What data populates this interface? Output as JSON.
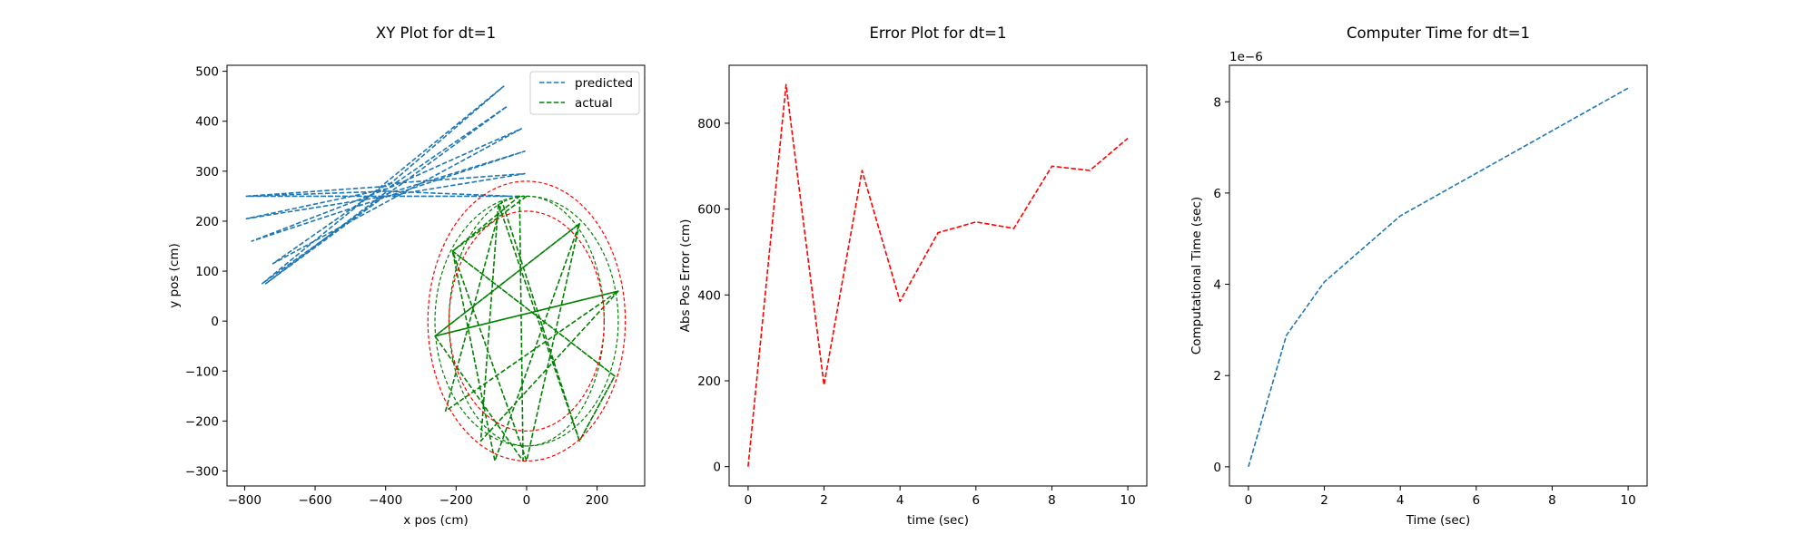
{
  "chart_data": [
    {
      "type": "line",
      "title": "XY Plot for dt=1",
      "xlabel": "x pos (cm)",
      "ylabel": "y pos (cm)",
      "xlim": [
        -850,
        335
      ],
      "ylim": [
        -330,
        512
      ],
      "xticks": [
        -800,
        -600,
        -400,
        -200,
        0,
        200
      ],
      "yticks": [
        -300,
        -200,
        -100,
        0,
        100,
        200,
        300,
        400,
        500
      ],
      "grid": false,
      "legend_position": "top-right",
      "legend": [
        {
          "label": "predicted",
          "color": "#1f77b4"
        },
        {
          "label": "actual",
          "color": "#008000"
        }
      ],
      "series": [
        {
          "name": "predicted",
          "color": "#1f77b4",
          "style": "dashed",
          "points": [
            [
              -395,
              260
            ],
            [
              -795,
              250
            ],
            [
              -45,
              250
            ],
            [
              -395,
              260
            ],
            [
              -740,
              75
            ],
            [
              -55,
              430
            ],
            [
              -395,
              265
            ],
            [
              -795,
              205
            ],
            [
              -5,
              295
            ],
            [
              -395,
              275
            ],
            [
              -720,
              115
            ],
            [
              -15,
              385
            ],
            [
              -395,
              265
            ],
            [
              -780,
              160
            ],
            [
              -5,
              340
            ],
            [
              -395,
              255
            ],
            [
              -750,
              75
            ],
            [
              -65,
              470
            ],
            [
              -395,
              270
            ],
            [
              -795,
              250
            ],
            [
              -5,
              250
            ]
          ]
        },
        {
          "name": "actual",
          "color": "#008000",
          "style": "dashed",
          "points": [
            [
              0,
              250
            ],
            [
              -210,
              140
            ],
            [
              -90,
              -280
            ],
            [
              150,
              195
            ],
            [
              -260,
              -30
            ],
            [
              260,
              60
            ],
            [
              -230,
              -180
            ],
            [
              -70,
              240
            ],
            [
              150,
              -240
            ],
            [
              250,
              -110
            ],
            [
              -210,
              140
            ],
            [
              -20,
              250
            ],
            [
              -10,
              -280
            ],
            [
              -260,
              -30
            ],
            [
              260,
              60
            ],
            [
              -130,
              -240
            ],
            [
              -80,
              235
            ],
            [
              150,
              -240
            ],
            [
              250,
              -110
            ],
            [
              -210,
              140
            ],
            [
              0,
              -280
            ],
            [
              150,
              195
            ],
            [
              -260,
              -30
            ],
            [
              260,
              60
            ]
          ]
        },
        {
          "name": "",
          "type": "ellipse",
          "color": "#008000",
          "style": "dashed",
          "ellipses": [
            {
              "cx": 0,
              "cy": 0,
              "rx": 220,
              "ry": 250
            },
            {
              "cx": 0,
              "cy": 0,
              "rx": 260,
              "ry": 250
            }
          ]
        },
        {
          "name": "",
          "type": "ellipse",
          "color": "#ff0000",
          "style": "dashed",
          "ellipses": [
            {
              "cx": 0,
              "cy": 0,
              "rx": 280,
              "ry": 280
            },
            {
              "cx": 0,
              "cy": 0,
              "rx": 220,
              "ry": 220
            }
          ]
        }
      ]
    },
    {
      "type": "line",
      "title": "Error Plot for dt=1",
      "xlabel": "time (sec)",
      "ylabel": "Abs Pos Error (cm)",
      "xlim": [
        -0.5,
        10.5
      ],
      "ylim": [
        -45,
        935
      ],
      "xticks": [
        0,
        2,
        4,
        6,
        8,
        10
      ],
      "yticks": [
        0,
        200,
        400,
        600,
        800
      ],
      "grid": false,
      "series": [
        {
          "name": "",
          "color": "#ff0000",
          "style": "dashed",
          "x": [
            0,
            1,
            2,
            3,
            4,
            5,
            6,
            7,
            8,
            9,
            10
          ],
          "y": [
            0,
            890,
            190,
            690,
            385,
            545,
            570,
            555,
            700,
            690,
            765
          ]
        }
      ]
    },
    {
      "type": "line",
      "title": "Computer Time for dt=1",
      "xlabel": "Time (sec)",
      "ylabel": "Computational Time (sec)",
      "y_offset_label": "1e−6",
      "xlim": [
        -0.5,
        10.5
      ],
      "ylim": [
        -0.42,
        8.8
      ],
      "xticks": [
        0,
        2,
        4,
        6,
        8,
        10
      ],
      "yticks": [
        0,
        2,
        4,
        6,
        8
      ],
      "grid": false,
      "series": [
        {
          "name": "",
          "color": "#1f77b4",
          "style": "dashed",
          "x": [
            0,
            1,
            2,
            4,
            10
          ],
          "y": [
            0,
            2.88,
            4.05,
            5.5,
            8.3
          ]
        }
      ]
    }
  ]
}
